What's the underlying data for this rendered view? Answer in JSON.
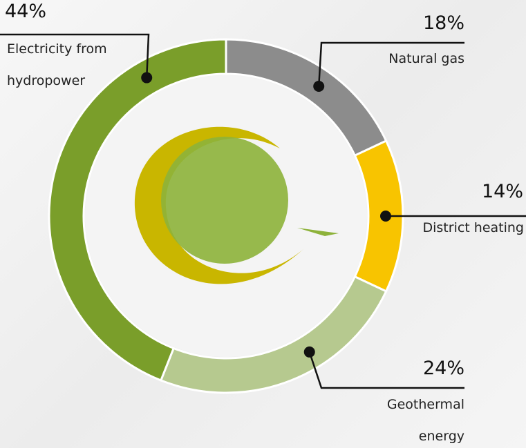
{
  "chart_data": {
    "type": "donut",
    "categories": [
      "Natural gas",
      "District heating",
      "Geothermal energy",
      "Electricity from hydropower"
    ],
    "values": [
      18,
      14,
      24,
      44
    ],
    "value_labels": [
      "18%",
      "14%",
      "24%",
      "44%"
    ],
    "colors": [
      "#8c8c8c",
      "#f8c400",
      "#b6c98f",
      "#7a9e2a"
    ]
  }
}
